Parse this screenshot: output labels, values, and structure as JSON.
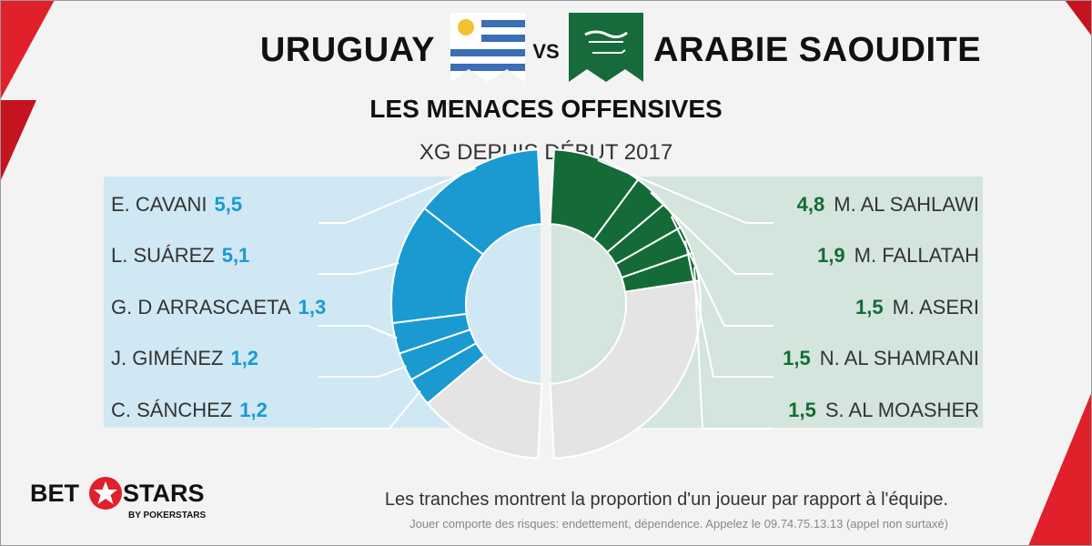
{
  "header": {
    "team_left": "URUGUAY",
    "vs": "VS",
    "team_right": "ARABIE SAOUDITE",
    "subtitle": "LES MENACES OFFENSIVES",
    "xg_label": "XG DEPUIS DÉBUT 2017"
  },
  "colors": {
    "uruguay": "#1a9ad1",
    "saudi": "#156b37",
    "rest": "#e4e4e4",
    "brand_red": "#e0202a"
  },
  "chart_data": [
    {
      "type": "pie",
      "team": "URUGUAY",
      "categories": [
        "E. CAVANI",
        "L. SUÁREZ",
        "G. D ARRASCAETA",
        "J. GIMÉNEZ",
        "C. SÁNCHEZ"
      ],
      "values": [
        5.5,
        5.1,
        1.3,
        1.2,
        1.2
      ],
      "value_labels": [
        "5,5",
        "5,1",
        "1,3",
        "1,2",
        "1,2"
      ],
      "team_share_of_half": 0.73
    },
    {
      "type": "pie",
      "team": "ARABIE SAOUDITE",
      "categories": [
        "M. AL SAHLAWI",
        "M. FALLATAH",
        "M. ASERI",
        "N. AL SHAMRANI",
        "S. AL MOASHER"
      ],
      "values": [
        4.8,
        1.9,
        1.5,
        1.5,
        1.5
      ],
      "value_labels": [
        "4,8",
        "1,9",
        "1,5",
        "1,5",
        "1,5"
      ],
      "team_share_of_half": 0.45
    }
  ],
  "footer": {
    "note": "Les tranches montrent la proportion d'un joueur par rapport à l'équipe.",
    "disclaimer": "Jouer comporte des risques: endettement, dépendence. Appelez le 09.74.75.13.13 (appel non surtaxé)"
  },
  "logo": {
    "bet": "BET",
    "stars": "STARS",
    "by": "BY POKERSTARS"
  }
}
